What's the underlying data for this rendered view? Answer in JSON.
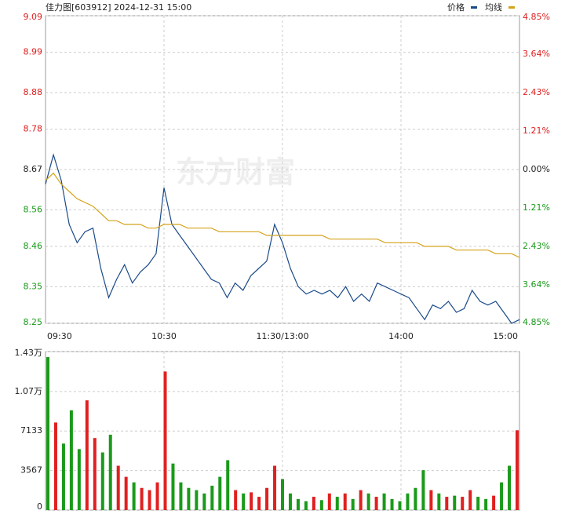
{
  "chart_data": [
    {
      "type": "line",
      "title": "佳力图[603912] 2024-12-31 15:00",
      "watermark": "东方财富",
      "prev_close": 8.67,
      "categories": [
        "09:30",
        null,
        null,
        null,
        null,
        null,
        null,
        null,
        null,
        null,
        null,
        null,
        null,
        null,
        null,
        "10:30",
        null,
        null,
        null,
        null,
        null,
        null,
        null,
        null,
        null,
        null,
        null,
        null,
        null,
        null,
        "11:30/13:00",
        null,
        null,
        null,
        null,
        null,
        null,
        null,
        null,
        null,
        null,
        null,
        null,
        null,
        null,
        "14:00",
        null,
        null,
        null,
        null,
        null,
        null,
        null,
        null,
        null,
        null,
        null,
        null,
        null,
        null,
        "15:00"
      ],
      "series": [
        {
          "name": "价格",
          "color": "#1a4a8a",
          "values": [
            8.63,
            8.71,
            8.64,
            8.52,
            8.47,
            8.5,
            8.51,
            8.4,
            8.32,
            8.37,
            8.41,
            8.36,
            8.39,
            8.41,
            8.44,
            8.62,
            8.52,
            8.49,
            8.46,
            8.43,
            8.4,
            8.37,
            8.36,
            8.32,
            8.36,
            8.34,
            8.38,
            8.4,
            8.42,
            8.52,
            8.47,
            8.4,
            8.35,
            8.33,
            8.34,
            8.33,
            8.34,
            8.32,
            8.35,
            8.31,
            8.33,
            8.31,
            8.36,
            8.35,
            8.34,
            8.33,
            8.32,
            8.29,
            8.26,
            8.3,
            8.29,
            8.31,
            8.28,
            8.29,
            8.34,
            8.31,
            8.3,
            8.31,
            8.28,
            8.25,
            8.26
          ]
        },
        {
          "name": "均线",
          "color": "#d4a21a",
          "values": [
            8.64,
            8.66,
            8.63,
            8.61,
            8.59,
            8.58,
            8.57,
            8.55,
            8.53,
            8.53,
            8.52,
            8.52,
            8.52,
            8.51,
            8.51,
            8.52,
            8.52,
            8.52,
            8.51,
            8.51,
            8.51,
            8.51,
            8.5,
            8.5,
            8.5,
            8.5,
            8.5,
            8.5,
            8.49,
            8.49,
            8.49,
            8.49,
            8.49,
            8.49,
            8.49,
            8.49,
            8.48,
            8.48,
            8.48,
            8.48,
            8.48,
            8.48,
            8.48,
            8.47,
            8.47,
            8.47,
            8.47,
            8.47,
            8.46,
            8.46,
            8.46,
            8.46,
            8.45,
            8.45,
            8.45,
            8.45,
            8.45,
            8.44,
            8.44,
            8.44,
            8.43
          ]
        }
      ],
      "ylim": [
        8.25,
        9.09
      ],
      "yticks": [
        9.09,
        8.99,
        8.88,
        8.78,
        8.67,
        8.56,
        8.46,
        8.35,
        8.25
      ],
      "y2lim": [
        -4.85,
        4.85
      ],
      "y2ticks": [
        {
          "value": 4.85,
          "label": "4.85%"
        },
        {
          "value": 3.64,
          "label": "3.64%"
        },
        {
          "value": 2.43,
          "label": "2.43%"
        },
        {
          "value": 1.21,
          "label": "1.21%"
        },
        {
          "value": 0,
          "label": "0.00%"
        },
        {
          "value": -1.21,
          "label": "1.21%"
        },
        {
          "value": -2.43,
          "label": "2.43%"
        },
        {
          "value": -3.64,
          "label": "3.64%"
        },
        {
          "value": -4.85,
          "label": "4.85%"
        }
      ],
      "grid": true
    },
    {
      "type": "bar",
      "up_color": "#e02020",
      "down_color": "#1a9a1a",
      "values": [
        13800,
        7900,
        6000,
        9000,
        5500,
        9900,
        6500,
        5200,
        6800,
        4000,
        3000,
        2500,
        2000,
        1800,
        2500,
        12500,
        4200,
        2500,
        2000,
        1800,
        1500,
        2200,
        3000,
        4500,
        1800,
        1500,
        1600,
        1200,
        2000,
        4000,
        2800,
        1500,
        1000,
        800,
        1200,
        900,
        1500,
        1200,
        1500,
        1000,
        1800,
        1500,
        1200,
        1500,
        1000,
        800,
        1500,
        2000,
        3600,
        1800,
        1500,
        1200,
        1300,
        1200,
        1800,
        1200,
        1000,
        1300,
        2500,
        4000,
        7200
      ],
      "ylim": [
        0,
        14300
      ],
      "yticks": [
        {
          "value": 14300,
          "label": "1.43万"
        },
        {
          "value": 10700,
          "label": "1.07万"
        },
        7133,
        3567,
        0
      ],
      "grid": true
    }
  ]
}
